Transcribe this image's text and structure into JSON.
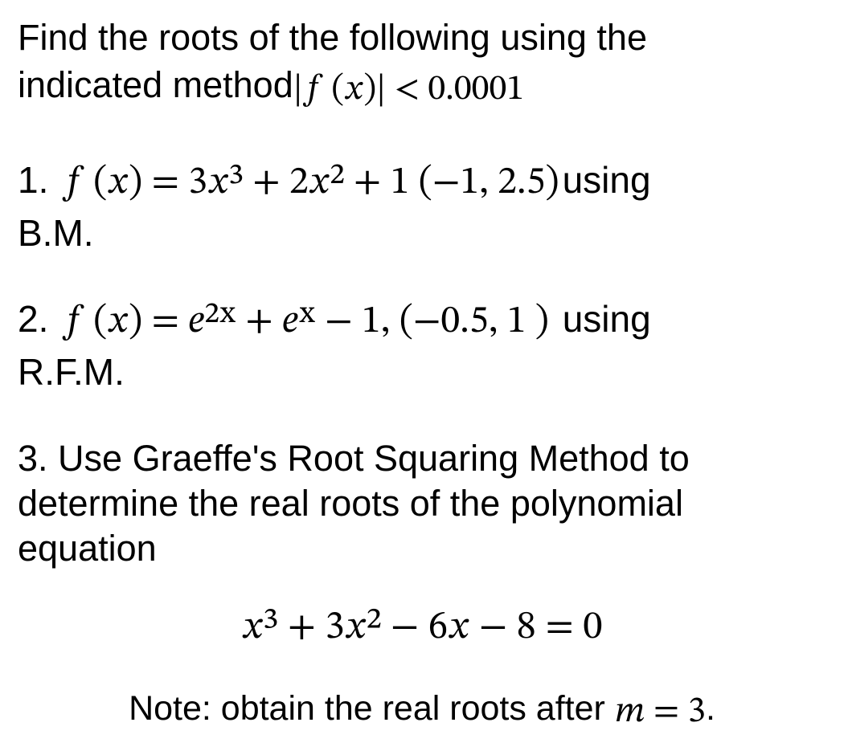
{
  "page": {
    "background_color": "#ffffff",
    "text_color": "#000000",
    "body_font": "Arial, Helvetica, sans-serif",
    "math_font": "Cambria Math, STIX Two Math, Georgia, serif",
    "base_fontsize_pt": 34
  },
  "intro_a": "Find the roots of the following using the",
  "intro_b": "indicated method",
  "intro_math": "|𝑓 (𝑥)| < 0.0001",
  "p1": {
    "num": "1.",
    "math": "𝑓 (𝑥) = 3𝑥³ + 2𝑥² + 1  (−1, 2.5)",
    "using": "using",
    "method": "B.M."
  },
  "p2": {
    "num": "2.",
    "math": "𝑓 (𝑥) = 𝑒²ˣ + 𝑒ˣ − 1,   (−0.5,  1 )",
    "using": "using",
    "method": "R.F.M."
  },
  "p3": {
    "num": "3.",
    "text": "Use Graeffe's Root Squaring Method to determine the real roots of the polynomial equation",
    "equation": "𝑥³ + 3𝑥² − 6𝑥 − 8 = 0",
    "note_a": "Note: obtain the real roots after ",
    "note_math": "𝑚 = 3",
    "note_b": "."
  }
}
